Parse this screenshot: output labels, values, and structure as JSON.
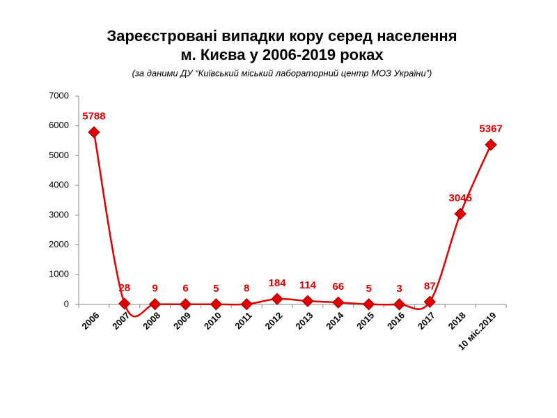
{
  "chart_data": {
    "type": "line",
    "title": [
      "Зареєстровані випадки кору серед населення",
      "м. Києва у 2006-2019 роках"
    ],
    "subtitle": "(за даними ДУ “Київський міський лабораторний центр МОЗ України”)",
    "categories": [
      "2006",
      "2007",
      "2008",
      "2009",
      "2010",
      "2011",
      "2012",
      "2013",
      "2014",
      "2015",
      "2016",
      "2017",
      "2018",
      "10 міс.2019"
    ],
    "values": [
      5788,
      28,
      9,
      6,
      5,
      8,
      184,
      114,
      66,
      5,
      3,
      87,
      3045,
      5367
    ],
    "color": "#e00000",
    "ylim": [
      0,
      7000
    ],
    "yticks": [
      0,
      1000,
      2000,
      3000,
      4000,
      5000,
      6000,
      7000
    ],
    "grid": false,
    "smooth": true
  }
}
